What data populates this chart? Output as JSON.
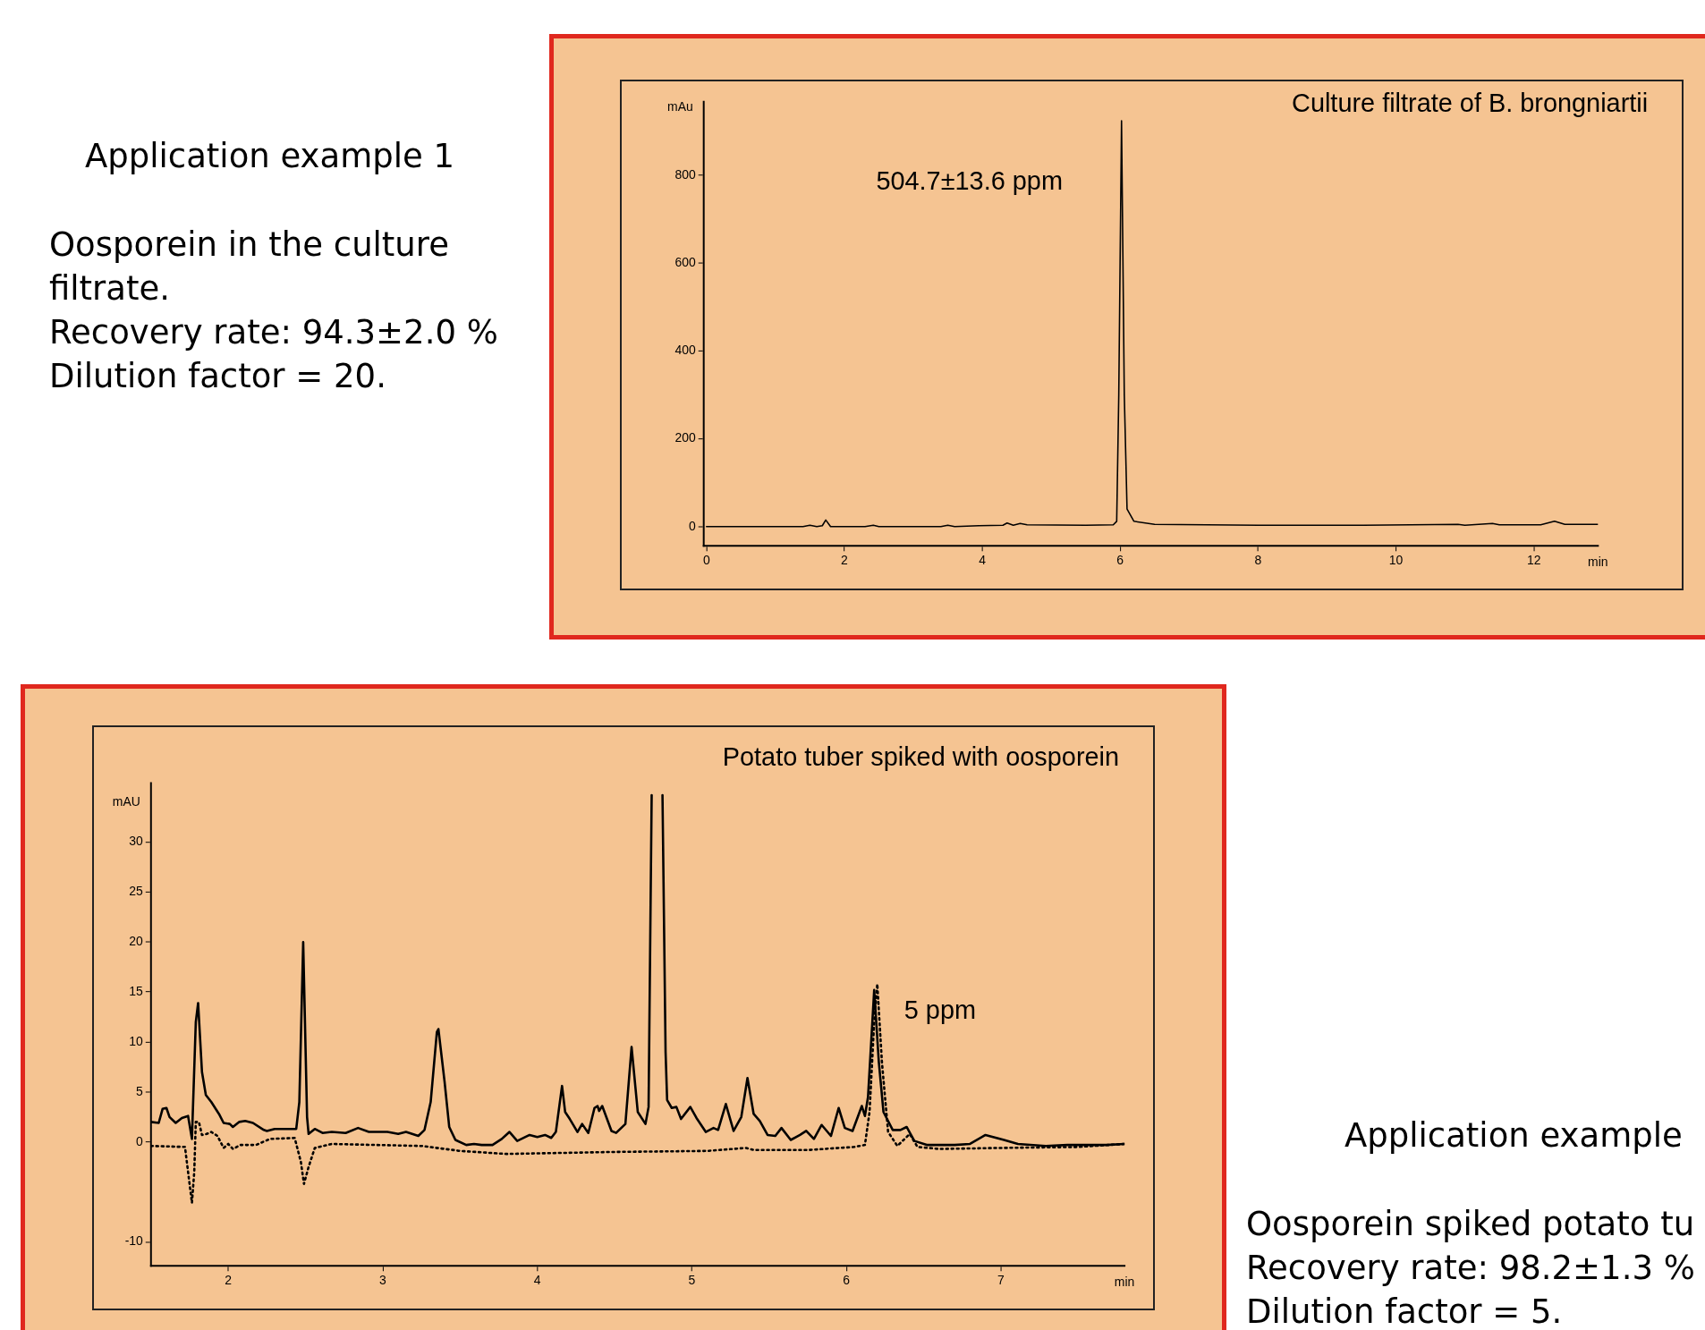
{
  "chart_data": [
    {
      "type": "line",
      "title": "Culture filtrate of B. brongniartii",
      "xlabel": "min",
      "ylabel": "mAu",
      "annotations": [
        "504.7±13.6 ppm",
        "Application example 1",
        "Oosporein in the culture filtrate.",
        "Recovery rate: 94.3±2.0 %",
        "Dilution factor = 20."
      ],
      "xlim": [
        -0.04,
        12.93
      ],
      "xticks": [
        0,
        2,
        4,
        6,
        8,
        10,
        12
      ],
      "ylim": [
        -44,
        967
      ],
      "yticks": [
        0,
        200,
        400,
        600,
        800
      ],
      "grid": false,
      "marker": "none",
      "series": [
        {
          "color": "#000000",
          "line_style": "solid",
          "x": [
            0,
            1.4,
            1.5,
            1.6,
            1.68,
            1.73,
            1.8,
            2.3,
            2.42,
            2.5,
            3.4,
            3.5,
            3.6,
            3.95,
            4.3,
            4.36,
            4.45,
            4.55,
            4.65,
            5.5,
            5.9,
            5.95,
            5.98,
            6.02,
            6.06,
            6.1,
            6.2,
            6.5,
            8,
            9.5,
            10.9,
            11,
            11.4,
            11.5,
            12.1,
            12.3,
            12.45,
            12.93
          ],
          "values": [
            0,
            0,
            3,
            0,
            2,
            15,
            0,
            0,
            3,
            0,
            0,
            3,
            0,
            2,
            3,
            8,
            3,
            7,
            4,
            3,
            4,
            12,
            300,
            924,
            300,
            40,
            12,
            5,
            3,
            3,
            5,
            3,
            7,
            4,
            4,
            12,
            5,
            5
          ]
        }
      ]
    },
    {
      "type": "line",
      "title": "Potato tuber spiked with oosporein",
      "xlabel": "min",
      "ylabel": "mAU",
      "annotations": [
        "5 ppm",
        "Application example",
        "Oosporein spiked potato tu",
        "Recovery rate: 98.2±1.3 %",
        "Dilution factor = 5."
      ],
      "xlim": [
        1.5,
        7.8
      ],
      "xticks": [
        2,
        3,
        4,
        5,
        6,
        7
      ],
      "ylim": [
        -12.4,
        35.9
      ],
      "yticks": [
        -10,
        0,
        5,
        10,
        15,
        20,
        25,
        30
      ],
      "grid": false,
      "marker": "none",
      "series": [
        {
          "color": "#000000",
          "line_style": "solid",
          "x": [
            1.5,
            1.55,
            1.575,
            1.6,
            1.62,
            1.66,
            1.7,
            1.74,
            1.765,
            1.79,
            1.805,
            1.83,
            1.855,
            1.89,
            1.94,
            1.97,
            2.01,
            2.03,
            2.07,
            2.11,
            2.16,
            2.23,
            2.25,
            2.3,
            2.44,
            2.46,
            2.485,
            2.51,
            2.52,
            2.56,
            2.61,
            2.67,
            2.76,
            2.84,
            2.91,
            3.03,
            3.1,
            3.15,
            3.23,
            3.27,
            3.31,
            3.35,
            3.36,
            3.4,
            3.43,
            3.47,
            3.54,
            3.59,
            3.64,
            3.71,
            3.77,
            3.82,
            3.87,
            3.95,
            4,
            4.05,
            4.09,
            4.12,
            4.16,
            4.18,
            4.21,
            4.26,
            4.29,
            4.33,
            4.37,
            4.39,
            4.4,
            4.42,
            4.48,
            4.51,
            4.57,
            4.61,
            4.65,
            4.7,
            4.72,
            4.74,
            4.775,
            4.81,
            4.83,
            4.84,
            4.87,
            4.9,
            4.93,
            4.99,
            5.03,
            5.09,
            5.14,
            5.17,
            5.22,
            5.27,
            5.32,
            5.36,
            5.4,
            5.44,
            5.49,
            5.54,
            5.58,
            5.64,
            5.7,
            5.74,
            5.79,
            5.84,
            5.9,
            5.95,
            5.99,
            6.04,
            6.1,
            6.12,
            6.14,
            6.18,
            6.21,
            6.24,
            6.3,
            6.35,
            6.39,
            6.44,
            6.52,
            6.7,
            6.8,
            6.9,
            7.02,
            7.11,
            7.29,
            7.43,
            7.68,
            7.8
          ],
          "values": [
            2,
            1.9,
            3.3,
            3.4,
            2.5,
            1.9,
            2.4,
            2.6,
            0.3,
            12,
            13.9,
            7,
            4.7,
            4,
            2.8,
            1.9,
            1.8,
            1.5,
            2,
            2.1,
            1.9,
            1.2,
            1.1,
            1.3,
            1.3,
            4,
            20,
            2.5,
            0.8,
            1.3,
            0.9,
            1,
            0.9,
            1.4,
            1,
            1,
            0.8,
            1,
            0.6,
            1.2,
            4,
            11,
            11.3,
            6,
            1.5,
            0.2,
            -0.3,
            -0.2,
            -0.3,
            -0.3,
            0.3,
            1,
            0.1,
            0.7,
            0.5,
            0.7,
            0.4,
            1,
            5.6,
            3,
            2.3,
            1,
            1.8,
            0.9,
            3.4,
            3.6,
            3.1,
            3.6,
            1.1,
            0.9,
            1.8,
            9.5,
            3,
            1.8,
            3.5,
            34.7,
            null,
            34.7,
            9,
            4.2,
            3.4,
            3.5,
            2.3,
            3.5,
            2.4,
            1,
            1.4,
            1.2,
            3.8,
            1.1,
            2.5,
            6.4,
            2.8,
            2.1,
            0.7,
            0.6,
            1.4,
            0.2,
            0.7,
            1.1,
            0.3,
            1.7,
            0.6,
            3.4,
            1.4,
            1.1,
            3.6,
            2.6,
            4.5,
            15.2,
            8,
            3,
            1.2,
            1.2,
            1.5,
            0.1,
            -0.3,
            -0.3,
            -0.2,
            0.7,
            0.2,
            -0.2,
            -0.4,
            -0.3,
            -0.3,
            -0.2
          ]
        },
        {
          "color": "#000000",
          "line_style": "dotted",
          "x": [
            1.5,
            1.72,
            1.74,
            1.765,
            1.78,
            1.79,
            1.81,
            1.83,
            1.86,
            1.89,
            1.93,
            1.97,
            2,
            2.03,
            2.08,
            2.18,
            2.27,
            2.43,
            2.47,
            2.49,
            2.52,
            2.56,
            2.67,
            2.95,
            3.25,
            3.5,
            3.8,
            4.5,
            5.1,
            5.35,
            5.4,
            5.76,
            6.05,
            6.12,
            6.15,
            6.18,
            6.2,
            6.23,
            6.27,
            6.33,
            6.37,
            6.41,
            6.46,
            6.6,
            7,
            7.5,
            7.8
          ],
          "values": [
            -0.4,
            -0.5,
            -3,
            -6.1,
            -3,
            2,
            2,
            0.7,
            0.8,
            1,
            0.6,
            -0.6,
            -0.2,
            -0.7,
            -0.3,
            -0.3,
            0.3,
            0.4,
            -2,
            -4.2,
            -2.5,
            -0.6,
            -0.2,
            -0.3,
            -0.4,
            -0.9,
            -1.2,
            -1,
            -0.9,
            -0.6,
            -0.8,
            -0.8,
            -0.5,
            -0.3,
            3,
            12,
            15.8,
            8,
            1,
            -0.4,
            0.2,
            0.8,
            -0.5,
            -0.7,
            -0.6,
            -0.5,
            -0.2
          ]
        }
      ]
    }
  ]
}
